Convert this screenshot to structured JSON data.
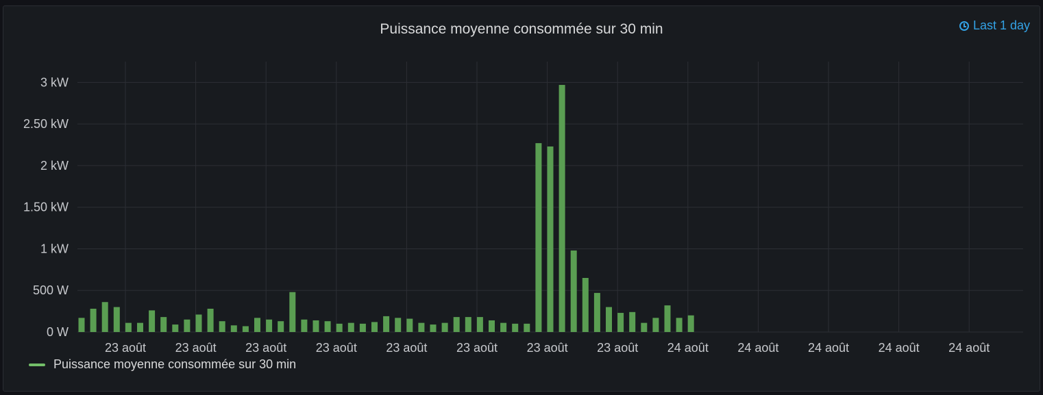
{
  "panel": {
    "title": "Puissance moyenne consommée sur 30 min",
    "time_range": "Last 1 day",
    "time_icon": "clock-icon"
  },
  "colors": {
    "bar": "#5a9e52",
    "grid": "#2c2f35",
    "text": "#c7c9cd",
    "background": "#181b1f"
  },
  "chart_data": {
    "type": "bar",
    "title": "Puissance moyenne consommée sur 30 min",
    "xlabel": "",
    "ylabel": "",
    "grid": true,
    "legend_position": "bottom-left",
    "ylim": [
      0,
      3250
    ],
    "y_ticks": [
      {
        "value": 0,
        "label": "0 W"
      },
      {
        "value": 500,
        "label": "500 W"
      },
      {
        "value": 1000,
        "label": "1 kW"
      },
      {
        "value": 1500,
        "label": "1.50 kW"
      },
      {
        "value": 2000,
        "label": "2 kW"
      },
      {
        "value": 2500,
        "label": "2.50 kW"
      },
      {
        "value": 3000,
        "label": "3 kW"
      }
    ],
    "x_tick_labels": [
      "23 août",
      "23 août",
      "23 août",
      "23 août",
      "23 août",
      "23 août",
      "23 août",
      "23 août",
      "24 août",
      "24 août",
      "24 août",
      "24 août",
      "24 août"
    ],
    "series": [
      {
        "name": "Puissance moyenne consommée sur 30 min",
        "values": [
          170,
          280,
          360,
          300,
          110,
          110,
          260,
          180,
          90,
          150,
          210,
          280,
          130,
          80,
          70,
          170,
          150,
          130,
          480,
          150,
          140,
          130,
          100,
          110,
          100,
          120,
          190,
          170,
          160,
          110,
          90,
          110,
          180,
          180,
          180,
          140,
          110,
          100,
          100,
          2270,
          2230,
          2970,
          980,
          650,
          470,
          300,
          230,
          240,
          110,
          170,
          320,
          170,
          200
        ]
      }
    ]
  }
}
